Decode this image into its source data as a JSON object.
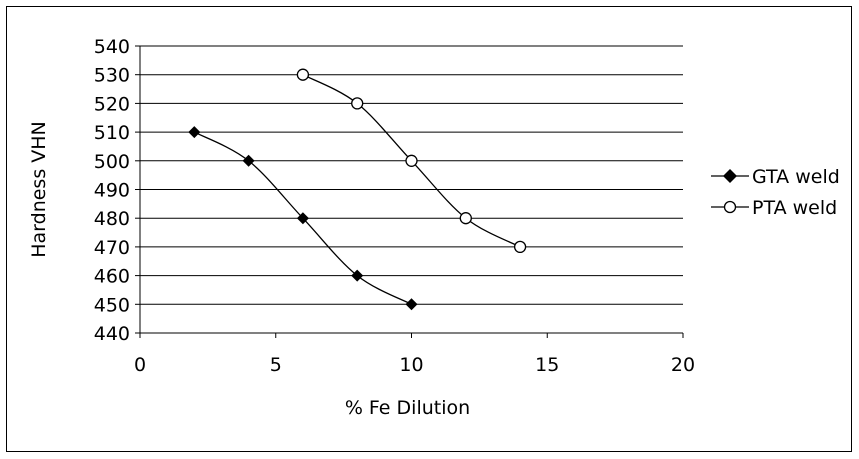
{
  "chart_data": {
    "type": "scatter",
    "title": "",
    "xlabel": "% Fe Dilution",
    "ylabel": "Hardness VHN",
    "xlim": [
      0,
      20
    ],
    "ylim": [
      440,
      540
    ],
    "x_ticks": [
      "0",
      "5",
      "10",
      "15",
      "20"
    ],
    "y_ticks": [
      "540",
      "530",
      "520",
      "510",
      "500",
      "490",
      "480",
      "470",
      "460",
      "450",
      "440"
    ],
    "grid": "horizontal",
    "legend_position": "right",
    "series": [
      {
        "name": "GTA weld",
        "marker": "diamond-filled",
        "color": "#000000",
        "x": [
          2,
          4,
          6,
          8,
          10
        ],
        "y": [
          510,
          500,
          480,
          460,
          450
        ]
      },
      {
        "name": "PTA weld",
        "marker": "circle-open",
        "color": "#000000",
        "x": [
          6,
          8,
          10,
          12,
          14
        ],
        "y": [
          530,
          520,
          500,
          480,
          470
        ]
      }
    ]
  }
}
